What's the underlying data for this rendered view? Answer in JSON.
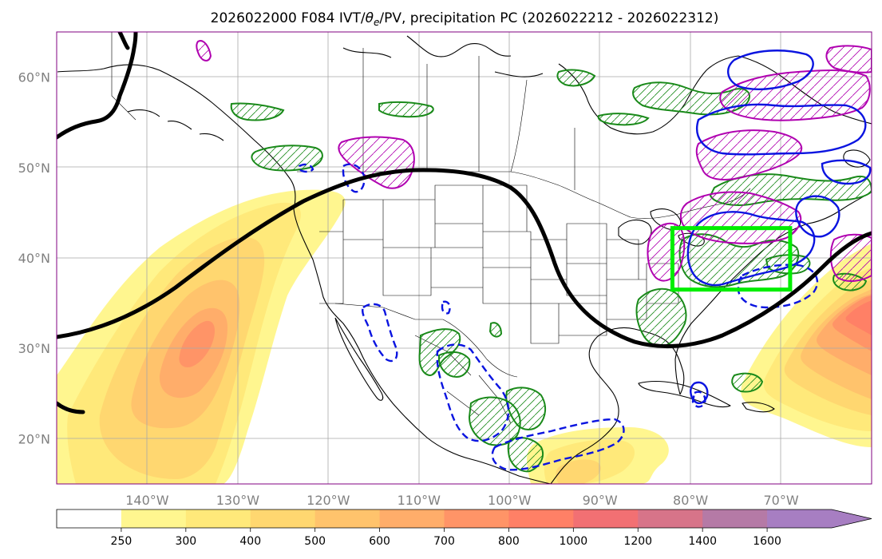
{
  "title": {
    "prefix": "2026022000 F084 IVT/",
    "theta": "θ",
    "theta_sub": "e",
    "suffix": "/PV, precipitation PC (2026022212 - 2026022312)"
  },
  "map": {
    "projection": "PlateCarree",
    "extent": {
      "lon_min": -150,
      "lon_max": -60,
      "lat_min": 15,
      "lat_max": 65
    },
    "gridlines": true,
    "lat_ticks": [
      {
        "value": 60,
        "label": "60°N"
      },
      {
        "value": 50,
        "label": "50°N"
      },
      {
        "value": 40,
        "label": "40°N"
      },
      {
        "value": 30,
        "label": "30°N"
      },
      {
        "value": 20,
        "label": "20°N"
      }
    ],
    "lon_ticks": [
      {
        "value": -140,
        "label": "140°W"
      },
      {
        "value": -130,
        "label": "130°W"
      },
      {
        "value": -120,
        "label": "120°W"
      },
      {
        "value": -110,
        "label": "110°W"
      },
      {
        "value": -100,
        "label": "100°W"
      },
      {
        "value": -90,
        "label": "90°W"
      },
      {
        "value": -80,
        "label": "80°W"
      },
      {
        "value": -70,
        "label": "70°W"
      }
    ],
    "highlight_box": {
      "lon_min": -82,
      "lon_max": -69,
      "lat_min": 36.5,
      "lat_max": 43.3,
      "color": "#00ee00"
    }
  },
  "colorbar": {
    "levels": [
      "250",
      "300",
      "400",
      "500",
      "600",
      "700",
      "800",
      "1000",
      "1200",
      "1400",
      "1600"
    ],
    "colors": [
      "#ffffff",
      "#fff68f",
      "#ffe97a",
      "#ffd770",
      "#ffc36c",
      "#ffad6a",
      "#ff9467",
      "#ff8066",
      "#f27073",
      "#d77489",
      "#b57aa6",
      "#a77ec2"
    ],
    "extend": "max"
  },
  "legend_colors": {
    "ivt_fill": "#ffd770",
    "pv_line": "#000000",
    "precip_green": "#1a8a1a",
    "precip_magenta": "#b000b0",
    "precip_blue": "#0a14e0"
  }
}
